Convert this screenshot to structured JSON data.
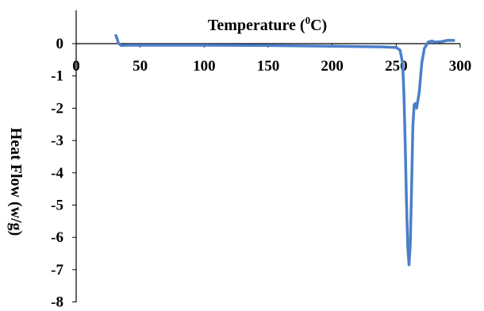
{
  "colors": {
    "series": "#4a7fc9",
    "axis": "#000000",
    "background": "#ffffff"
  },
  "chart_data": {
    "type": "line",
    "xlabel_main": "Temperature (",
    "xlabel_sup": "0",
    "xlabel_tail": "C)",
    "ylabel": "Heat Flow (w/g)",
    "xlim": [
      0,
      300
    ],
    "ylim": [
      -8,
      0.5
    ],
    "grid": false,
    "legend": "none",
    "x_ticks": [
      "0",
      "50",
      "100",
      "150",
      "200",
      "250",
      "300"
    ],
    "y_ticks": [
      "0",
      "-1",
      "-2",
      "-3",
      "-4",
      "-5",
      "-6",
      "-7",
      "-8"
    ],
    "series": [
      {
        "x": [
          31,
          32,
          33,
          35,
          40,
          60,
          100,
          150,
          200,
          240,
          250,
          253,
          255,
          256,
          257,
          258,
          259,
          260,
          261,
          262,
          263,
          264,
          265,
          266,
          268,
          270,
          272,
          275,
          278,
          280,
          285,
          290,
          295
        ],
        "y": [
          0.25,
          0.15,
          0.02,
          -0.06,
          -0.05,
          -0.05,
          -0.05,
          -0.06,
          -0.08,
          -0.1,
          -0.12,
          -0.2,
          -0.6,
          -1.5,
          -3.0,
          -4.8,
          -6.3,
          -6.85,
          -6.2,
          -4.5,
          -2.6,
          -1.9,
          -1.85,
          -2.0,
          -1.5,
          -0.6,
          -0.15,
          0.05,
          0.08,
          0.05,
          0.06,
          0.1,
          0.1
        ]
      }
    ]
  }
}
